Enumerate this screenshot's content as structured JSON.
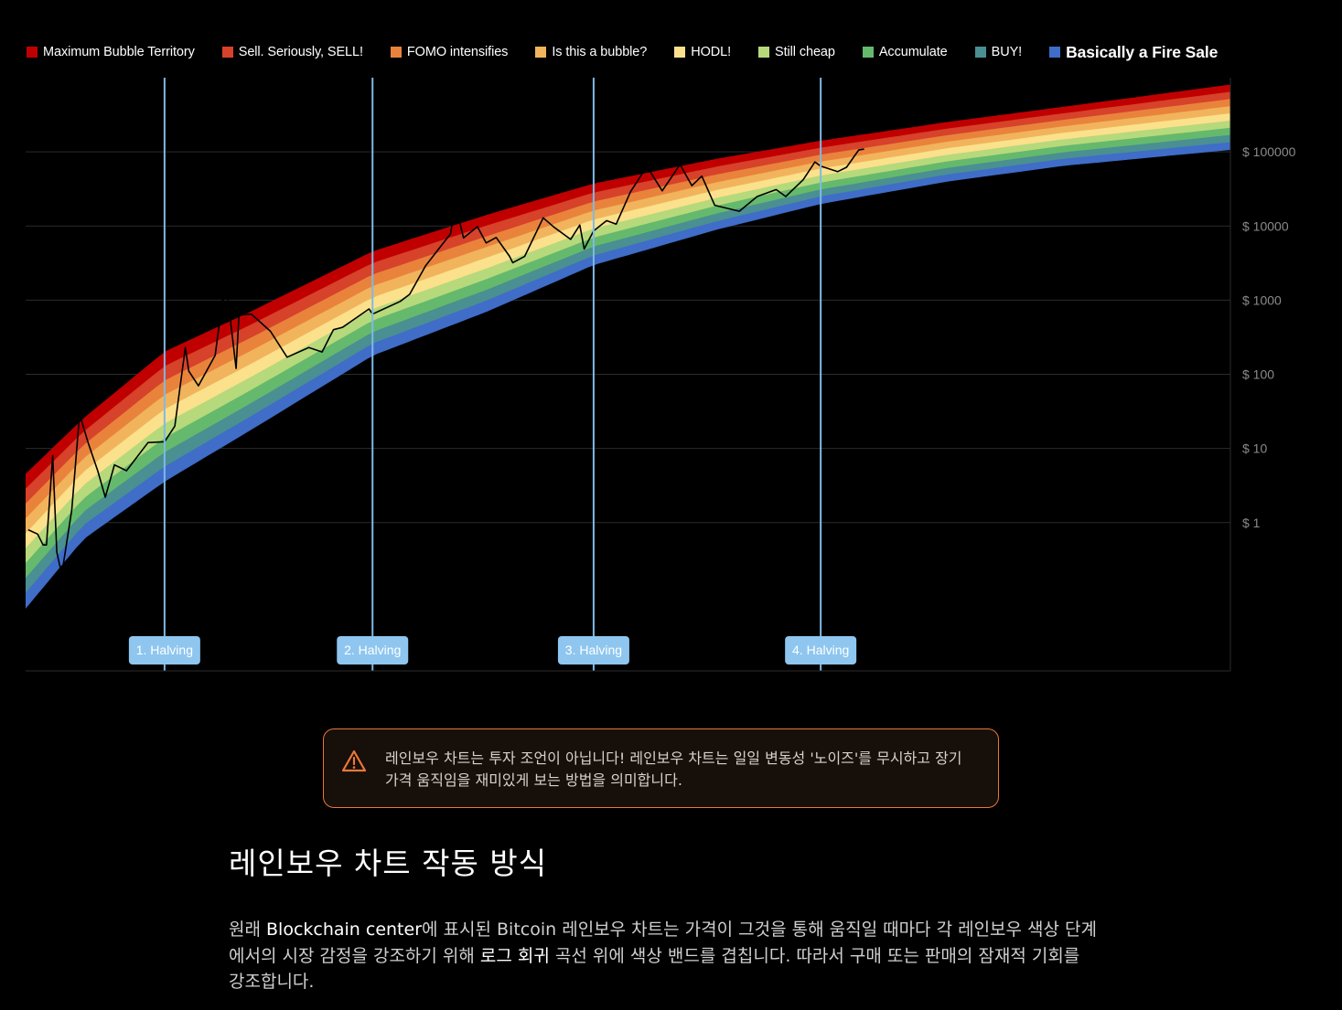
{
  "legend": [
    {
      "label": "Maximum Bubble Territory",
      "color": "#c00000"
    },
    {
      "label": "Sell. Seriously, SELL!",
      "color": "#d7422a"
    },
    {
      "label": "FOMO intensifies",
      "color": "#e9833c"
    },
    {
      "label": "Is this a bubble?",
      "color": "#f1b45c"
    },
    {
      "label": "HODL!",
      "color": "#fbe18c"
    },
    {
      "label": "Still cheap",
      "color": "#b6d97c"
    },
    {
      "label": "Accumulate",
      "color": "#65b96c"
    },
    {
      "label": "BUY!",
      "color": "#4a8f92"
    },
    {
      "label": "Basically a Fire Sale",
      "color": "#3f6dc8"
    }
  ],
  "chart_data": {
    "type": "line",
    "title": "",
    "y_scale": "log",
    "ylim": [
      0.01,
      1000000
    ],
    "xlim": [
      "2010-07-01",
      "2031-06-01"
    ],
    "y_tick_labels": [
      "$ 1",
      "$ 10",
      "$ 100",
      "$ 1000",
      "$ 10000",
      "$ 100000"
    ],
    "grid": true,
    "legend_position": "top",
    "bands": [
      {
        "name": "Maximum Bubble Territory",
        "color": "#c00000"
      },
      {
        "name": "Sell. Seriously, SELL!",
        "color": "#d7422a"
      },
      {
        "name": "FOMO intensifies",
        "color": "#e9833c"
      },
      {
        "name": "Is this a bubble?",
        "color": "#f1b45c"
      },
      {
        "name": "HODL!",
        "color": "#fbe18c"
      },
      {
        "name": "Still cheap",
        "color": "#b6d97c"
      },
      {
        "name": "Accumulate",
        "color": "#65b96c"
      },
      {
        "name": "BUY!",
        "color": "#4a8f92"
      },
      {
        "name": "Basically a Fire Sale",
        "color": "#3f6dc8"
      }
    ],
    "band_lower_edge": [
      {
        "x": "2010-07-01",
        "y": 0.07
      },
      {
        "x": "2011-07-01",
        "y": 0.6
      },
      {
        "x": "2012-11-28",
        "y": 3.6
      },
      {
        "x": "2014-06-01",
        "y": 18
      },
      {
        "x": "2016-07-09",
        "y": 180
      },
      {
        "x": "2018-07-01",
        "y": 700
      },
      {
        "x": "2020-05-11",
        "y": 3000
      },
      {
        "x": "2022-07-01",
        "y": 9000
      },
      {
        "x": "2024-04-20",
        "y": 20000
      },
      {
        "x": "2026-07-01",
        "y": 40000
      },
      {
        "x": "2028-07-01",
        "y": 65000
      },
      {
        "x": "2031-06-01",
        "y": 107000
      }
    ],
    "band_upper_edge": [
      {
        "x": "2010-07-01",
        "y": 4.5
      },
      {
        "x": "2011-07-01",
        "y": 25
      },
      {
        "x": "2012-11-28",
        "y": 200
      },
      {
        "x": "2014-06-01",
        "y": 700
      },
      {
        "x": "2016-07-09",
        "y": 4500
      },
      {
        "x": "2018-07-01",
        "y": 14000
      },
      {
        "x": "2020-05-11",
        "y": 37000
      },
      {
        "x": "2022-07-01",
        "y": 80000
      },
      {
        "x": "2024-04-20",
        "y": 140000
      },
      {
        "x": "2026-07-01",
        "y": 250000
      },
      {
        "x": "2028-07-01",
        "y": 400000
      },
      {
        "x": "2031-06-01",
        "y": 800000
      }
    ],
    "series": [
      {
        "color": "#000000",
        "points": [
          {
            "x": "2010-07-18",
            "y": 0.8
          },
          {
            "x": "2010-09-15",
            "y": 0.7
          },
          {
            "x": "2010-10-20",
            "y": 0.5
          },
          {
            "x": "2010-11-10",
            "y": 0.5
          },
          {
            "x": "2010-12-20",
            "y": 8
          },
          {
            "x": "2011-01-15",
            "y": 0.4
          },
          {
            "x": "2011-02-15",
            "y": 0.2
          },
          {
            "x": "2011-04-20",
            "y": 1.5
          },
          {
            "x": "2011-06-08",
            "y": 29
          },
          {
            "x": "2011-08-01",
            "y": 12
          },
          {
            "x": "2011-10-01",
            "y": 5
          },
          {
            "x": "2011-11-18",
            "y": 2.2
          },
          {
            "x": "2012-01-15",
            "y": 6
          },
          {
            "x": "2012-04-01",
            "y": 5
          },
          {
            "x": "2012-08-15",
            "y": 12
          },
          {
            "x": "2012-11-28",
            "y": 12.3
          },
          {
            "x": "2013-02-01",
            "y": 20
          },
          {
            "x": "2013-04-09",
            "y": 230
          },
          {
            "x": "2013-05-01",
            "y": 110
          },
          {
            "x": "2013-07-01",
            "y": 70
          },
          {
            "x": "2013-10-15",
            "y": 180
          },
          {
            "x": "2013-12-04",
            "y": 1150
          },
          {
            "x": "2013-12-18",
            "y": 520
          },
          {
            "x": "2014-01-05",
            "y": 1000
          },
          {
            "x": "2014-02-25",
            "y": 120
          },
          {
            "x": "2014-03-15",
            "y": 630
          },
          {
            "x": "2014-06-01",
            "y": 650
          },
          {
            "x": "2014-10-01",
            "y": 380
          },
          {
            "x": "2015-01-14",
            "y": 170
          },
          {
            "x": "2015-06-01",
            "y": 230
          },
          {
            "x": "2015-08-24",
            "y": 200
          },
          {
            "x": "2015-11-04",
            "y": 400
          },
          {
            "x": "2016-01-01",
            "y": 430
          },
          {
            "x": "2016-06-17",
            "y": 760
          },
          {
            "x": "2016-07-09",
            "y": 650
          },
          {
            "x": "2016-12-31",
            "y": 960
          },
          {
            "x": "2017-03-01",
            "y": 1200
          },
          {
            "x": "2017-06-10",
            "y": 2900
          },
          {
            "x": "2017-09-01",
            "y": 4900
          },
          {
            "x": "2017-11-15",
            "y": 7800
          },
          {
            "x": "2017-12-17",
            "y": 19500
          },
          {
            "x": "2018-02-06",
            "y": 6900
          },
          {
            "x": "2018-05-05",
            "y": 9800
          },
          {
            "x": "2018-06-29",
            "y": 5900
          },
          {
            "x": "2018-09-01",
            "y": 7000
          },
          {
            "x": "2018-11-25",
            "y": 3900
          },
          {
            "x": "2018-12-15",
            "y": 3200
          },
          {
            "x": "2019-03-01",
            "y": 3900
          },
          {
            "x": "2019-06-26",
            "y": 12900
          },
          {
            "x": "2019-09-01",
            "y": 9700
          },
          {
            "x": "2019-12-17",
            "y": 6600
          },
          {
            "x": "2020-02-13",
            "y": 10300
          },
          {
            "x": "2020-03-12",
            "y": 4900
          },
          {
            "x": "2020-05-11",
            "y": 8600
          },
          {
            "x": "2020-08-01",
            "y": 11800
          },
          {
            "x": "2020-10-01",
            "y": 10600
          },
          {
            "x": "2020-12-31",
            "y": 29000
          },
          {
            "x": "2021-04-14",
            "y": 63500
          },
          {
            "x": "2021-07-20",
            "y": 29800
          },
          {
            "x": "2021-11-10",
            "y": 67500
          },
          {
            "x": "2022-01-24",
            "y": 35000
          },
          {
            "x": "2022-03-28",
            "y": 47000
          },
          {
            "x": "2022-06-18",
            "y": 19000
          },
          {
            "x": "2022-11-21",
            "y": 15800
          },
          {
            "x": "2023-03-14",
            "y": 25000
          },
          {
            "x": "2023-07-13",
            "y": 31000
          },
          {
            "x": "2023-09-11",
            "y": 25000
          },
          {
            "x": "2023-12-31",
            "y": 42000
          },
          {
            "x": "2024-03-14",
            "y": 73000
          },
          {
            "x": "2024-04-20",
            "y": 64000
          },
          {
            "x": "2024-08-05",
            "y": 54000
          },
          {
            "x": "2024-10-01",
            "y": 62000
          },
          {
            "x": "2024-12-17",
            "y": 106000
          },
          {
            "x": "2025-01-20",
            "y": 109000
          }
        ]
      }
    ],
    "halvings": [
      {
        "label": "1. Halving",
        "x": "2012-11-28"
      },
      {
        "label": "2. Halving",
        "x": "2016-07-09"
      },
      {
        "label": "3. Halving",
        "x": "2020-05-11"
      },
      {
        "label": "4. Halving",
        "x": "2024-04-20"
      }
    ]
  },
  "warning": {
    "icon": "warning-triangle-icon",
    "color": "#e8773a",
    "text": "레인보우 차트는 투자 조언이 아닙니다! 레인보우 차트는 일일 변동성 '노이즈'를 무시하고 장기 가격 움직임을 재미있게 보는 방법을 의미합니다."
  },
  "section": {
    "title": "레인보우 차트 작동 방식",
    "body": {
      "p1": "원래 ",
      "link1": "Blockchain center",
      "p2": "에 표시된 Bitcoin 레인보우 차트는 가격이 그것을 통해 움직일 때마다 각 레인보우 색상 단계에서의 시장 감정을 강조하기 위해 ",
      "link2": "로그 회귀",
      "p3": " 곡선 위에 색상 밴드를 겹칩니다. 따라서 구매 또는 판매의 잠재적 기회를 강조합니다."
    }
  }
}
